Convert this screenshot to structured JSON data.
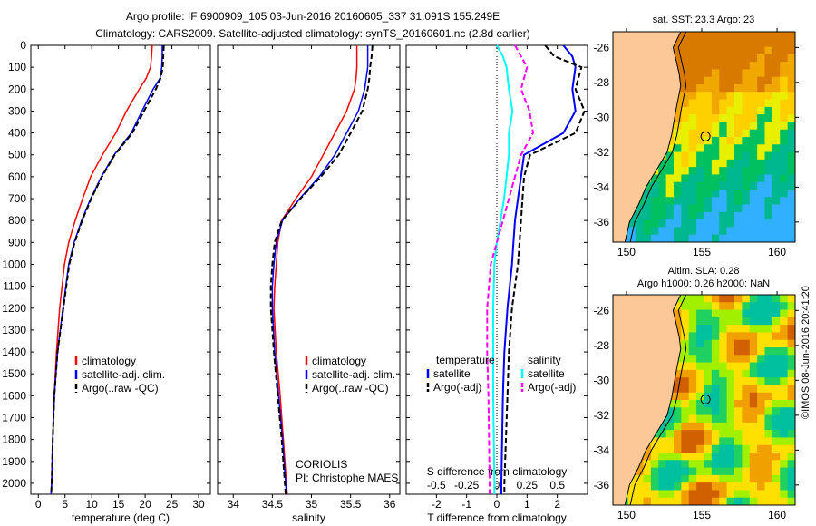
{
  "title_line1": "Argo profile: IF 6900909_105 03-Jun-2016 20160605_337 31.091S 155.249E",
  "title_line2": "Climatology: CARS2009. Satellite-adjusted climatology: synTS_20160601.nc (2.8d earlier)",
  "credit": "©IMOS 08-Jun-2016 20:41:20",
  "colors": {
    "climatology": "#ff0000",
    "satellite": "#0000ff",
    "argo": "#000000",
    "sal_satellite": "#00ffff",
    "sal_argo": "#ff00ff"
  },
  "chart_data": [
    {
      "type": "line",
      "name": "temperature",
      "xlabel": "temperature (deg C)",
      "ylabel": "depth",
      "xlim": [
        -1.4,
        32.2
      ],
      "ylim": [
        2050,
        0
      ],
      "xticks": [
        "0",
        "5",
        "10",
        "15",
        "20",
        "25",
        "30"
      ],
      "yticks": [
        "0",
        "100",
        "200",
        "300",
        "400",
        "500",
        "600",
        "700",
        "800",
        "900",
        "1000",
        "1100",
        "1200",
        "1300",
        "1400",
        "1500",
        "1600",
        "1700",
        "1800",
        "1900",
        "2000"
      ],
      "depth": [
        0,
        50,
        100,
        150,
        200,
        300,
        400,
        500,
        600,
        700,
        800,
        900,
        1000,
        1200,
        1400,
        1600,
        1800,
        2000,
        2050
      ],
      "legend": [
        "climatology",
        "satellite-adj. clim.",
        "Argo(..raw -QC)"
      ],
      "series": [
        {
          "name": "climatology",
          "values": [
            21.3,
            21.2,
            21.0,
            20.2,
            18.9,
            16.5,
            14.5,
            12.0,
            9.8,
            8.3,
            6.9,
            5.7,
            4.9,
            4.0,
            3.4,
            3.0,
            2.7,
            2.5,
            2.4
          ]
        },
        {
          "name": "satellite-adj. clim.",
          "values": [
            23.2,
            23.2,
            23.1,
            22.8,
            21.5,
            19.4,
            17.4,
            14.2,
            11.8,
            9.8,
            8.1,
            6.7,
            5.7,
            4.6,
            3.6,
            3.0,
            2.7,
            2.5,
            2.4
          ]
        },
        {
          "name": "Argo",
          "values": [
            23.5,
            23.4,
            23.3,
            22.9,
            22.0,
            19.8,
            17.6,
            14.3,
            11.9,
            9.9,
            8.2,
            6.8,
            5.8,
            4.7,
            3.6,
            3.0,
            2.7,
            2.5,
            2.4
          ]
        }
      ]
    },
    {
      "type": "line",
      "name": "salinity",
      "xlabel": "salinity",
      "ylabel": "depth",
      "xlim": [
        33.8,
        36.13
      ],
      "ylim": [
        2050,
        0
      ],
      "xticks": [
        "34",
        "34.5",
        "35",
        "35.5",
        "36"
      ],
      "depth": [
        0,
        50,
        100,
        150,
        200,
        300,
        400,
        500,
        600,
        700,
        800,
        900,
        1000,
        1100,
        1200,
        1400,
        1600,
        1800,
        2000,
        2050
      ],
      "legend": [
        "climatology",
        "satellite-adj. clim.",
        "Argo(..raw -QC)"
      ],
      "annotation": [
        "CORIOLIS",
        "PI: Christophe MAES"
      ],
      "series": [
        {
          "name": "climatology",
          "values": [
            35.58,
            35.58,
            35.58,
            35.57,
            35.55,
            35.45,
            35.3,
            35.15,
            35.0,
            34.8,
            34.62,
            34.57,
            34.55,
            34.53,
            34.52,
            34.55,
            34.6,
            34.64,
            34.68,
            34.69
          ]
        },
        {
          "name": "satellite-adj. clim.",
          "values": [
            35.72,
            35.72,
            35.72,
            35.7,
            35.68,
            35.6,
            35.45,
            35.3,
            35.1,
            34.85,
            34.63,
            34.55,
            34.52,
            34.5,
            34.5,
            34.53,
            34.58,
            34.63,
            34.67,
            34.68
          ]
        },
        {
          "name": "Argo",
          "values": [
            35.78,
            35.77,
            35.75,
            35.74,
            35.72,
            35.65,
            35.5,
            35.35,
            35.12,
            34.86,
            34.62,
            34.53,
            34.5,
            34.48,
            34.48,
            34.52,
            34.57,
            34.62,
            34.66,
            34.67
          ]
        }
      ]
    },
    {
      "type": "line",
      "name": "difference",
      "xlabel": "T difference from climatology",
      "x2label": "S difference from climatology",
      "xlim": [
        -3,
        3
      ],
      "x2lim": [
        -0.75,
        0.75
      ],
      "ylim": [
        2050,
        0
      ],
      "xticks": [
        "-2",
        "-1",
        "0",
        "1",
        "2"
      ],
      "x2ticks": [
        "-0.5",
        "-0.25",
        "0",
        "0.25",
        "0.5"
      ],
      "depth": [
        0,
        50,
        100,
        200,
        300,
        400,
        500,
        600,
        700,
        800,
        900,
        1000,
        1200,
        1400,
        1600,
        2000,
        2050
      ],
      "legend_titles": [
        "temperature",
        "salinity"
      ],
      "legend": [
        "satellite",
        "Argo(-adj)",
        "satellite",
        "Argo(-adj)"
      ],
      "series": [
        {
          "name": "T satellite",
          "values": [
            2.2,
            2.5,
            2.6,
            2.5,
            2.6,
            2.2,
            0.9,
            0.8,
            0.7,
            0.6,
            0.55,
            0.5,
            0.35,
            0.25,
            0.2,
            0.15,
            0.15
          ]
        },
        {
          "name": "T Argo",
          "values": [
            1.6,
            1.9,
            2.8,
            2.6,
            2.9,
            2.6,
            1.1,
            0.9,
            0.85,
            0.8,
            0.75,
            0.7,
            0.5,
            0.4,
            0.35,
            0.25,
            0.25
          ]
        },
        {
          "name": "S satellite",
          "values": [
            0.0,
            0.05,
            0.08,
            0.1,
            0.13,
            0.1,
            0.1,
            0.08,
            0.06,
            0.03,
            0.0,
            -0.02,
            -0.03,
            -0.03,
            -0.03,
            -0.02,
            -0.02
          ]
        },
        {
          "name": "S Argo",
          "values": [
            0.15,
            0.2,
            0.25,
            0.2,
            0.27,
            0.3,
            0.2,
            0.15,
            0.1,
            0.05,
            0.0,
            -0.05,
            -0.08,
            -0.08,
            -0.07,
            -0.06,
            -0.06
          ]
        }
      ]
    },
    {
      "type": "heatmap",
      "name": "sst-map",
      "title": "sat. SST: 23.3 Argo: 23",
      "lonlim": [
        149.1,
        161.2
      ],
      "latlim": [
        -37.15,
        -25.1
      ],
      "xticks": [
        "150",
        "155",
        "160"
      ],
      "yticks": [
        "-26",
        "-28",
        "-30",
        "-32",
        "-34",
        "-36"
      ],
      "station": {
        "lon": 155.249,
        "lat": -31.091
      }
    },
    {
      "type": "heatmap",
      "name": "sla-map",
      "title": "Altim. SLA: 0.28",
      "subtitle": "Argo h1000: 0.26 h2000: NaN",
      "lonlim": [
        149.1,
        161.2
      ],
      "latlim": [
        -37.15,
        -25.1
      ],
      "xticks": [
        "150",
        "155",
        "160"
      ],
      "yticks": [
        "-26",
        "-28",
        "-30",
        "-32",
        "-34",
        "-36"
      ],
      "station": {
        "lon": 155.249,
        "lat": -31.091
      }
    }
  ]
}
